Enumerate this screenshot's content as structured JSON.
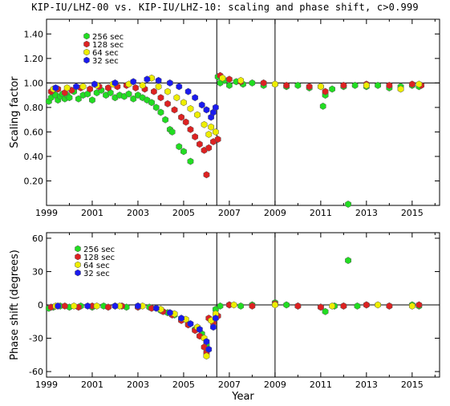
{
  "title": "KIP-IU/LHZ-00 vs. KIP-IU/LHZ-10: scaling and phase shift, c>0.999",
  "colors": {
    "256": "#22dd22",
    "128": "#dd2222",
    "64": "#eeee00",
    "32": "#1a1aee"
  },
  "chart_data": [
    {
      "type": "scatter",
      "panel": "top",
      "ylabel": "Scaling factor",
      "xlabel": "",
      "xlim": [
        1999,
        2016.2
      ],
      "ylim": [
        0,
        1.52
      ],
      "yticks": [
        "0.20",
        "0.40",
        "0.60",
        "0.80",
        "1.00",
        "1.20",
        "1.40"
      ],
      "ytick_values": [
        0.2,
        0.4,
        0.6,
        0.8,
        1.0,
        1.2,
        1.4
      ],
      "xticks": [
        "1999",
        "2001",
        "2003",
        "2005",
        "2007",
        "2009",
        "2011",
        "2013",
        "2015"
      ],
      "xtick_values": [
        1999,
        2001,
        2003,
        2005,
        2007,
        2009,
        2011,
        2013,
        2015
      ],
      "reference_line_y": 1.0,
      "vertical_lines_x": [
        2006.45,
        2009.0
      ],
      "legend": [
        "256 sec",
        "128 sec",
        " 64 sec",
        " 32 sec"
      ],
      "series": [
        {
          "name": "256 sec",
          "color": "#22dd22",
          "points": [
            [
              1999.1,
              0.85
            ],
            [
              1999.2,
              0.88
            ],
            [
              1999.3,
              0.92
            ],
            [
              1999.4,
              0.9
            ],
            [
              1999.5,
              0.86
            ],
            [
              1999.6,
              0.89
            ],
            [
              1999.7,
              0.91
            ],
            [
              1999.8,
              0.87
            ],
            [
              1999.9,
              0.9
            ],
            [
              2000.0,
              0.88
            ],
            [
              2000.2,
              0.93
            ],
            [
              2000.4,
              0.87
            ],
            [
              2000.6,
              0.9
            ],
            [
              2000.8,
              0.91
            ],
            [
              2001.0,
              0.86
            ],
            [
              2001.2,
              0.92
            ],
            [
              2001.4,
              0.94
            ],
            [
              2001.6,
              0.9
            ],
            [
              2001.8,
              0.92
            ],
            [
              2002.0,
              0.88
            ],
            [
              2002.2,
              0.9
            ],
            [
              2002.4,
              0.89
            ],
            [
              2002.6,
              0.91
            ],
            [
              2002.8,
              0.87
            ],
            [
              2003.0,
              0.9
            ],
            [
              2003.2,
              0.88
            ],
            [
              2003.4,
              0.86
            ],
            [
              2003.6,
              0.84
            ],
            [
              2003.8,
              0.8
            ],
            [
              2004.0,
              0.76
            ],
            [
              2004.2,
              0.7
            ],
            [
              2004.4,
              0.62
            ],
            [
              2004.5,
              0.6
            ],
            [
              2004.8,
              0.48
            ],
            [
              2005.0,
              0.44
            ],
            [
              2005.3,
              0.36
            ],
            [
              2006.5,
              1.05
            ],
            [
              2006.6,
              1.0
            ],
            [
              2006.8,
              1.02
            ],
            [
              2007.0,
              0.98
            ],
            [
              2007.3,
              1.01
            ],
            [
              2007.6,
              0.99
            ],
            [
              2008.0,
              1.0
            ],
            [
              2008.5,
              0.98
            ],
            [
              2009.0,
              0.99
            ],
            [
              2009.5,
              0.97
            ],
            [
              2010.0,
              0.98
            ],
            [
              2010.5,
              0.96
            ],
            [
              2011.0,
              0.97
            ],
            [
              2011.1,
              0.81
            ],
            [
              2011.2,
              0.9
            ],
            [
              2011.5,
              0.95
            ],
            [
              2012.0,
              0.97
            ],
            [
              2012.2,
              0.01
            ],
            [
              2012.5,
              0.98
            ],
            [
              2013.0,
              0.97
            ],
            [
              2013.5,
              0.98
            ],
            [
              2014.0,
              0.96
            ],
            [
              2014.5,
              0.97
            ],
            [
              2015.0,
              0.98
            ],
            [
              2015.3,
              0.97
            ]
          ]
        },
        {
          "name": "128 sec",
          "color": "#dd2222",
          "points": [
            [
              1999.2,
              0.93
            ],
            [
              1999.5,
              0.95
            ],
            [
              1999.8,
              0.92
            ],
            [
              2000.1,
              0.94
            ],
            [
              2000.5,
              0.96
            ],
            [
              2000.9,
              0.95
            ],
            [
              2001.3,
              0.97
            ],
            [
              2001.7,
              0.96
            ],
            [
              2002.1,
              0.97
            ],
            [
              2002.5,
              0.98
            ],
            [
              2002.9,
              0.96
            ],
            [
              2003.3,
              0.95
            ],
            [
              2003.7,
              0.93
            ],
            [
              2004.0,
              0.88
            ],
            [
              2004.3,
              0.83
            ],
            [
              2004.6,
              0.78
            ],
            [
              2004.9,
              0.72
            ],
            [
              2005.1,
              0.68
            ],
            [
              2005.3,
              0.62
            ],
            [
              2005.5,
              0.56
            ],
            [
              2005.7,
              0.5
            ],
            [
              2005.9,
              0.45
            ],
            [
              2006.0,
              0.25
            ],
            [
              2006.1,
              0.47
            ],
            [
              2006.3,
              0.52
            ],
            [
              2006.5,
              0.54
            ],
            [
              2006.6,
              1.06
            ],
            [
              2007.0,
              1.03
            ],
            [
              2007.5,
              1.01
            ],
            [
              2008.5,
              1.0
            ],
            [
              2009.5,
              0.98
            ],
            [
              2010.5,
              0.97
            ],
            [
              2011.2,
              0.93
            ],
            [
              2012.0,
              0.98
            ],
            [
              2013.0,
              0.99
            ],
            [
              2014.0,
              0.98
            ],
            [
              2015.0,
              0.99
            ],
            [
              2015.4,
              0.98
            ]
          ]
        },
        {
          "name": " 64 sec",
          "color": "#eeee00",
          "points": [
            [
              1999.3,
              0.95
            ],
            [
              1999.9,
              0.96
            ],
            [
              2000.6,
              0.97
            ],
            [
              2001.2,
              0.98
            ],
            [
              2001.9,
              0.99
            ],
            [
              2002.6,
              0.99
            ],
            [
              2003.2,
              0.98
            ],
            [
              2003.6,
              1.04
            ],
            [
              2003.9,
              0.97
            ],
            [
              2004.3,
              0.93
            ],
            [
              2004.7,
              0.88
            ],
            [
              2005.0,
              0.84
            ],
            [
              2005.3,
              0.79
            ],
            [
              2005.6,
              0.74
            ],
            [
              2005.9,
              0.66
            ],
            [
              2006.1,
              0.58
            ],
            [
              2006.2,
              0.64
            ],
            [
              2006.4,
              0.6
            ],
            [
              2006.7,
              1.04
            ],
            [
              2007.5,
              1.02
            ],
            [
              2009.0,
              0.99
            ],
            [
              2011.0,
              0.97
            ],
            [
              2013.0,
              0.98
            ],
            [
              2014.5,
              0.95
            ],
            [
              2015.3,
              0.99
            ]
          ]
        },
        {
          "name": " 32 sec",
          "color": "#1a1aee",
          "points": [
            [
              1999.4,
              0.96
            ],
            [
              2000.3,
              0.97
            ],
            [
              2001.1,
              0.99
            ],
            [
              2002.0,
              1.0
            ],
            [
              2002.8,
              1.01
            ],
            [
              2003.4,
              1.03
            ],
            [
              2003.9,
              1.02
            ],
            [
              2004.4,
              1.0
            ],
            [
              2004.8,
              0.97
            ],
            [
              2005.2,
              0.93
            ],
            [
              2005.5,
              0.88
            ],
            [
              2005.8,
              0.82
            ],
            [
              2006.0,
              0.78
            ],
            [
              2006.2,
              0.72
            ],
            [
              2006.3,
              0.76
            ],
            [
              2006.4,
              0.8
            ]
          ]
        }
      ]
    },
    {
      "type": "scatter",
      "panel": "bottom",
      "ylabel": "Phase shift (degrees)",
      "xlabel": "Year",
      "xlim": [
        1999,
        2016.2
      ],
      "ylim": [
        -65,
        65
      ],
      "yticks": [
        "-60",
        "-30",
        "0",
        "30",
        "60"
      ],
      "ytick_values": [
        -60,
        -30,
        0,
        30,
        60
      ],
      "xticks": [
        "1999",
        "2001",
        "2003",
        "2005",
        "2007",
        "2009",
        "2011",
        "2013",
        "2015"
      ],
      "xtick_values": [
        1999,
        2001,
        2003,
        2005,
        2007,
        2009,
        2011,
        2013,
        2015
      ],
      "reference_line_y": 0,
      "vertical_lines_x": [
        2006.45,
        2009.0
      ],
      "legend": [
        "256 sec",
        "128 sec",
        " 64 sec",
        " 32 sec"
      ],
      "series": [
        {
          "name": "256 sec",
          "color": "#22dd22",
          "points": [
            [
              1999.1,
              -3
            ],
            [
              1999.3,
              -2
            ],
            [
              1999.6,
              -1
            ],
            [
              2000.0,
              -2
            ],
            [
              2000.5,
              -1
            ],
            [
              2001.0,
              -2
            ],
            [
              2001.5,
              -1
            ],
            [
              2002.0,
              -1
            ],
            [
              2002.5,
              -2
            ],
            [
              2003.0,
              -1
            ],
            [
              2003.5,
              -2
            ],
            [
              2004.0,
              -5
            ],
            [
              2004.3,
              -7
            ],
            [
              2004.6,
              -9
            ],
            [
              2004.9,
              -13
            ],
            [
              2005.2,
              -17
            ],
            [
              2005.5,
              -22
            ],
            [
              2005.8,
              -26
            ],
            [
              2006.0,
              -36
            ],
            [
              2006.4,
              -4
            ],
            [
              2006.6,
              -1
            ],
            [
              2007.0,
              0
            ],
            [
              2007.5,
              -1
            ],
            [
              2008.0,
              0
            ],
            [
              2009.0,
              2
            ],
            [
              2009.5,
              0
            ],
            [
              2010.0,
              -1
            ],
            [
              2011.0,
              -2
            ],
            [
              2011.2,
              -6
            ],
            [
              2011.6,
              -1
            ],
            [
              2012.0,
              -1
            ],
            [
              2012.2,
              40
            ],
            [
              2012.6,
              -1
            ],
            [
              2013.0,
              0
            ],
            [
              2014.0,
              -1
            ],
            [
              2015.0,
              0
            ],
            [
              2015.3,
              -1
            ]
          ]
        },
        {
          "name": "128 sec",
          "color": "#dd2222",
          "points": [
            [
              1999.2,
              -2
            ],
            [
              1999.8,
              -1
            ],
            [
              2000.4,
              -2
            ],
            [
              2001.0,
              -1
            ],
            [
              2001.7,
              -2
            ],
            [
              2002.3,
              -1
            ],
            [
              2003.0,
              -2
            ],
            [
              2003.6,
              -3
            ],
            [
              2004.1,
              -6
            ],
            [
              2004.5,
              -9
            ],
            [
              2004.9,
              -14
            ],
            [
              2005.2,
              -18
            ],
            [
              2005.5,
              -23
            ],
            [
              2005.7,
              -28
            ],
            [
              2005.9,
              -38
            ],
            [
              2006.0,
              -43
            ],
            [
              2006.1,
              -12
            ],
            [
              2006.3,
              -16
            ],
            [
              2006.5,
              -10
            ],
            [
              2007.0,
              0
            ],
            [
              2008.0,
              -1
            ],
            [
              2009.0,
              1
            ],
            [
              2010.0,
              -1
            ],
            [
              2011.0,
              -2
            ],
            [
              2012.0,
              -1
            ],
            [
              2013.0,
              0
            ],
            [
              2014.0,
              -1
            ],
            [
              2015.3,
              0
            ]
          ]
        },
        {
          "name": " 64 sec",
          "color": "#eeee00",
          "points": [
            [
              1999.4,
              -1
            ],
            [
              2000.2,
              -1
            ],
            [
              2001.2,
              -1
            ],
            [
              2002.2,
              -1
            ],
            [
              2003.2,
              -1
            ],
            [
              2004.0,
              -4
            ],
            [
              2004.6,
              -8
            ],
            [
              2005.1,
              -13
            ],
            [
              2005.6,
              -20
            ],
            [
              2005.9,
              -30
            ],
            [
              2006.0,
              -46
            ],
            [
              2006.2,
              -14
            ],
            [
              2006.4,
              -8
            ],
            [
              2007.2,
              0
            ],
            [
              2009.0,
              0
            ],
            [
              2011.5,
              -1
            ],
            [
              2013.5,
              0
            ],
            [
              2015.0,
              -1
            ]
          ]
        },
        {
          "name": " 32 sec",
          "color": "#1a1aee",
          "points": [
            [
              1999.5,
              -1
            ],
            [
              2000.8,
              -1
            ],
            [
              2002.0,
              -1
            ],
            [
              2003.0,
              -1
            ],
            [
              2003.8,
              -3
            ],
            [
              2004.4,
              -7
            ],
            [
              2004.9,
              -12
            ],
            [
              2005.3,
              -17
            ],
            [
              2005.7,
              -22
            ],
            [
              2006.0,
              -33
            ],
            [
              2006.1,
              -40
            ],
            [
              2006.3,
              -20
            ],
            [
              2006.4,
              -12
            ]
          ]
        }
      ]
    }
  ]
}
